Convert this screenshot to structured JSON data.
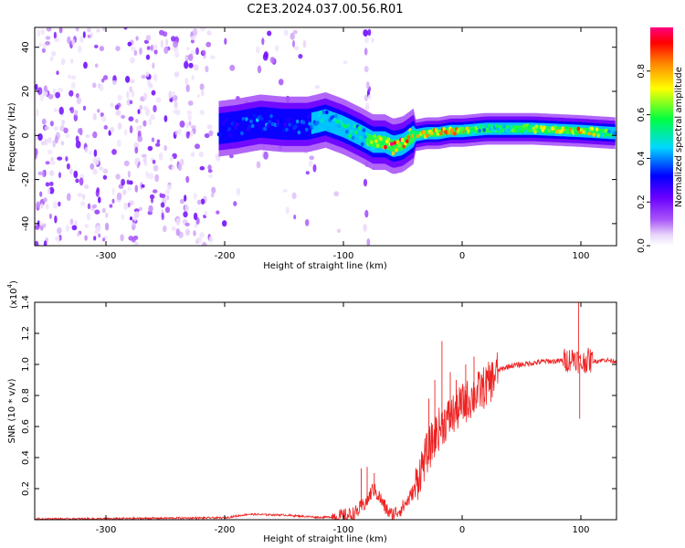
{
  "title": "C2E3.2024.037.00.56.R01",
  "chart_data": [
    {
      "type": "heatmap",
      "xlabel": "Height of straight line (km)",
      "ylabel": "Frequency (Hz)",
      "xlim": [
        -360,
        130
      ],
      "ylim": [
        -50,
        49
      ],
      "xticks": [
        -300,
        -200,
        -100,
        0,
        100
      ],
      "yticks": [
        -40,
        -20,
        0,
        20,
        40
      ],
      "colorbar": {
        "label": "Normalized spectral amplitude",
        "range": [
          0,
          1
        ],
        "ticks": [
          "0.0",
          "0.2",
          "0.4",
          "0.6",
          "0.8"
        ],
        "colormap": [
          "#ffffff",
          "#e8d4fa",
          "#a855f7",
          "#6a00ff",
          "#0000ff",
          "#00d8ff",
          "#00ff40",
          "#ffff00",
          "#ff8000",
          "#ff0000",
          "#ff0080"
        ]
      },
      "ridge": {
        "x": [
          -205,
          -190,
          -170,
          -150,
          -130,
          -115,
          -100,
          -85,
          -75,
          -65,
          -58,
          -50,
          -40,
          -30,
          -20,
          -10,
          0,
          20,
          60,
          100,
          130
        ],
        "frequency": [
          3,
          4,
          6,
          5,
          5,
          7,
          4,
          0,
          -3,
          -3,
          -5,
          -4,
          0,
          1,
          1,
          2,
          2,
          3,
          3,
          2,
          1
        ],
        "amplitude": [
          0.3,
          0.35,
          0.4,
          0.35,
          0.4,
          0.45,
          0.5,
          0.5,
          0.6,
          0.85,
          0.95,
          0.9,
          0.75,
          0.8,
          0.8,
          0.9,
          0.75,
          0.5,
          0.6,
          0.8,
          0.5
        ]
      }
    },
    {
      "type": "line",
      "xlabel": "Height of straight line (km)",
      "ylabel": "SNR (10 * v/v)",
      "y_multiplier": "(x10",
      "y_exponent": "4",
      "xlim": [
        -360,
        130
      ],
      "ylim": [
        0,
        1.4
      ],
      "xticks": [
        -300,
        -200,
        -100,
        0,
        100
      ],
      "yticks": [
        "0.2",
        "0.4",
        "0.6",
        "0.8",
        "1.0",
        "1.2",
        "1.4"
      ],
      "color": "#ee2222",
      "series": [
        {
          "x": [
            -360,
            -300,
            -250,
            -200,
            -180,
            -150,
            -120,
            -100,
            -90,
            -80,
            -75,
            -70,
            -65,
            -60,
            -55,
            -50,
            -45,
            -40,
            -35,
            -30,
            -25,
            -20,
            -15,
            -10,
            -5,
            0,
            5,
            10,
            15,
            20,
            25,
            30,
            40,
            50,
            60,
            70,
            80,
            90,
            95,
            100,
            105,
            110,
            120,
            130
          ],
          "values": [
            0.005,
            0.006,
            0.01,
            0.012,
            0.035,
            0.03,
            0.015,
            0.02,
            0.04,
            0.12,
            0.2,
            0.15,
            0.08,
            0.03,
            0.05,
            0.08,
            0.13,
            0.2,
            0.32,
            0.42,
            0.5,
            0.58,
            0.63,
            0.66,
            0.7,
            0.74,
            0.77,
            0.8,
            0.83,
            0.86,
            0.9,
            0.96,
            0.99,
            1.0,
            1.01,
            1.02,
            1.02,
            1.03,
            1.05,
            1.0,
            1.03,
            1.02,
            1.03,
            1.02
          ]
        }
      ],
      "spikes": [
        {
          "x": -85,
          "value": 0.33
        },
        {
          "x": -80,
          "value": 0.34
        },
        {
          "x": -74,
          "value": 0.3
        },
        {
          "x": -28,
          "value": 0.78
        },
        {
          "x": -23,
          "value": 0.9
        },
        {
          "x": -17,
          "value": 1.15
        },
        {
          "x": -10,
          "value": 0.95
        },
        {
          "x": -5,
          "value": 0.9
        },
        {
          "x": 3,
          "value": 1.0
        },
        {
          "x": 10,
          "value": 1.05
        },
        {
          "x": 98,
          "value": 1.4
        },
        {
          "x": 99,
          "value": 0.65
        }
      ]
    }
  ]
}
